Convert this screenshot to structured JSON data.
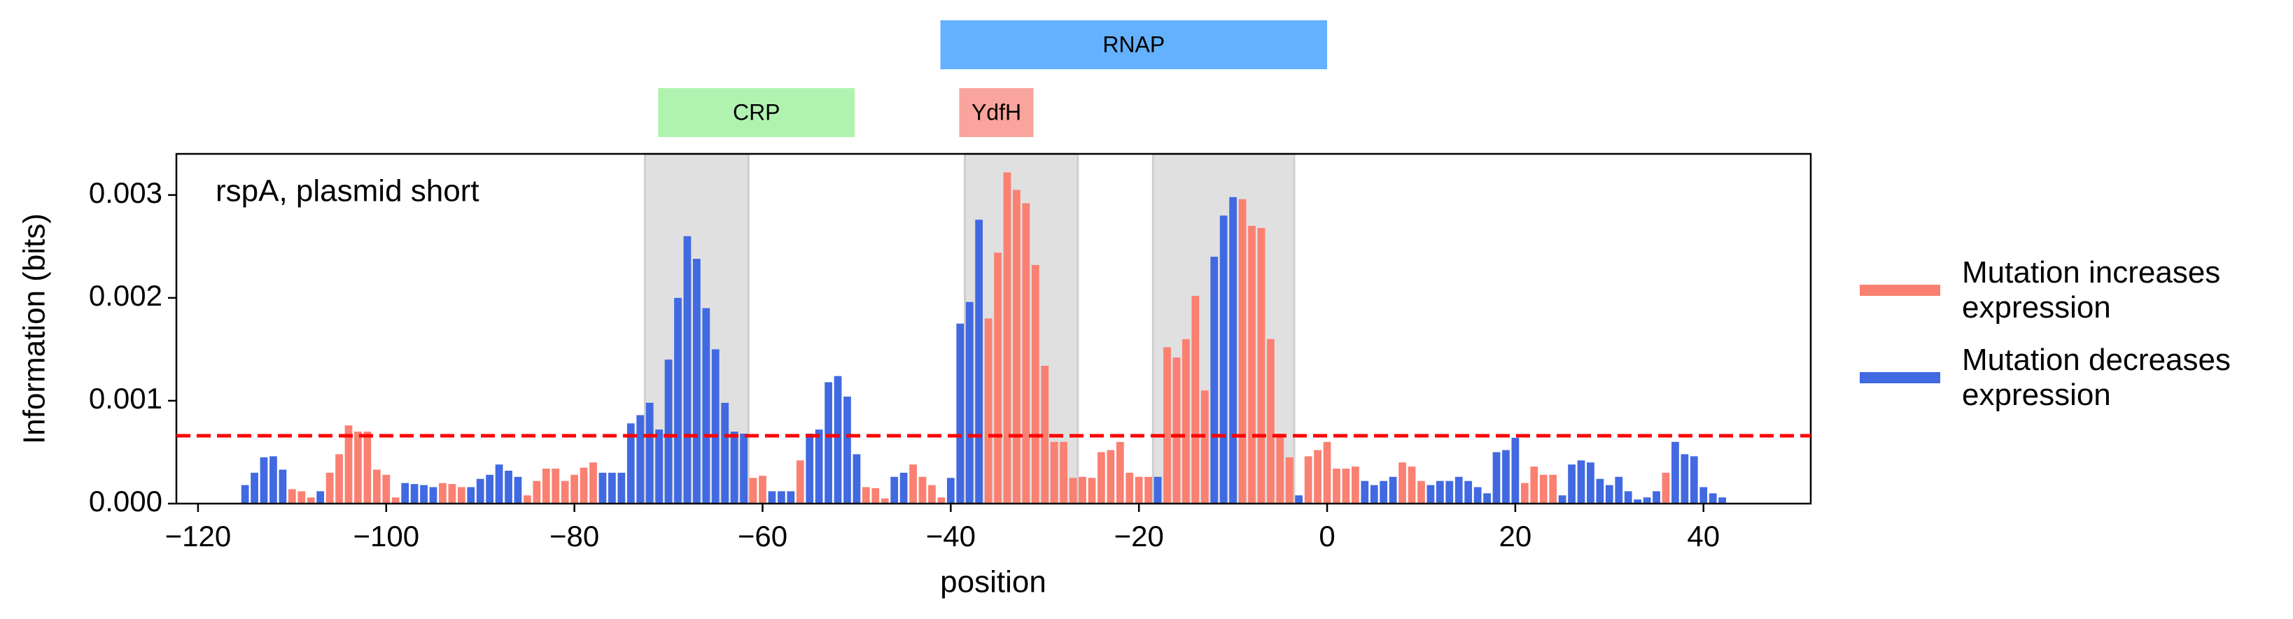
{
  "chart_data": {
    "type": "bar",
    "annotation": "rspA, plasmid short",
    "xlabel": "position",
    "ylabel": "Information (bits)",
    "xlim": [
      -122.3,
      51.4
    ],
    "ylim": [
      0,
      0.0034
    ],
    "xticks": [
      {
        "value": -120,
        "label": "−120"
      },
      {
        "value": -100,
        "label": "−100"
      },
      {
        "value": -80,
        "label": "−80"
      },
      {
        "value": -60,
        "label": "−60"
      },
      {
        "value": -40,
        "label": "−40"
      },
      {
        "value": -20,
        "label": "−20"
      },
      0,
      20,
      40
    ],
    "yticks": [
      {
        "value": 0,
        "label": "0.000"
      },
      {
        "value": 0.001,
        "label": "0.001"
      },
      {
        "value": 0.002,
        "label": "0.002"
      },
      {
        "value": 0.003,
        "label": "0.003"
      }
    ],
    "threshold": 0.00066,
    "threshold_color": "#ff0000",
    "highlight_regions": [
      [
        -72.5,
        -61.5
      ],
      [
        -38.5,
        -26.5
      ],
      [
        -18.5,
        -3.5
      ]
    ],
    "features": [
      [
        {
          "label": "RNAP",
          "x": [
            -41.1,
            0
          ],
          "color": "#64b1ff"
        }
      ],
      [
        {
          "label": "CRP",
          "x": [
            -71.1,
            -50.2
          ],
          "color": "#b0f2b0"
        },
        {
          "label": "YdfH",
          "x": [
            -39.1,
            -31.2
          ],
          "color": "#f9a49c"
        }
      ]
    ],
    "x": [
      -115,
      -114,
      -113,
      -112,
      -111,
      -110,
      -109,
      -108,
      -107,
      -106,
      -105,
      -104,
      -103,
      -102,
      -101,
      -100,
      -99,
      -98,
      -97,
      -96,
      -95,
      -94,
      -93,
      -92,
      -91,
      -90,
      -89,
      -88,
      -87,
      -86,
      -85,
      -84,
      -83,
      -82,
      -81,
      -80,
      -79,
      -78,
      -77,
      -76,
      -75,
      -74,
      -73,
      -72,
      -71,
      -70,
      -69,
      -68,
      -67,
      -66,
      -65,
      -64,
      -63,
      -62,
      -61,
      -60,
      -59,
      -58,
      -57,
      -56,
      -55,
      -54,
      -53,
      -52,
      -51,
      -50,
      -49,
      -48,
      -47,
      -46,
      -45,
      -44,
      -43,
      -42,
      -41,
      -40,
      -39,
      -38,
      -37,
      -36,
      -35,
      -34,
      -33,
      -32,
      -31,
      -30,
      -29,
      -28,
      -27,
      -26,
      -25,
      -24,
      -23,
      -22,
      -21,
      -20,
      -19,
      -18,
      -17,
      -16,
      -15,
      -14,
      -13,
      -12,
      -11,
      -10,
      -9,
      -8,
      -7,
      -6,
      -5,
      -4,
      -3,
      -2,
      -1,
      0,
      1,
      2,
      3,
      4,
      5,
      6,
      7,
      8,
      9,
      10,
      11,
      12,
      13,
      14,
      15,
      16,
      17,
      18,
      19,
      20,
      21,
      22,
      23,
      24,
      25,
      26,
      27,
      28,
      29,
      30,
      31,
      32,
      33,
      34,
      35,
      36,
      37,
      38,
      39,
      40,
      41,
      42
    ],
    "series": [
      {
        "name": "Mutation increases expression",
        "color": "#fa8072",
        "values": [
          null,
          null,
          null,
          null,
          null,
          0.00014,
          0.00012,
          6e-05,
          null,
          0.0003,
          0.00048,
          0.00076,
          0.0007,
          0.0007,
          0.00033,
          0.00028,
          6e-05,
          null,
          null,
          null,
          null,
          0.0002,
          0.00019,
          0.00016,
          null,
          null,
          null,
          null,
          null,
          null,
          8e-05,
          0.00022,
          0.00034,
          0.00034,
          0.00022,
          0.00028,
          0.00035,
          0.0004,
          null,
          null,
          null,
          null,
          null,
          null,
          null,
          null,
          null,
          null,
          null,
          null,
          null,
          null,
          null,
          null,
          0.00025,
          0.00027,
          null,
          null,
          null,
          0.00042,
          null,
          null,
          null,
          null,
          null,
          null,
          0.00016,
          0.00015,
          5e-05,
          null,
          null,
          0.00038,
          0.00026,
          0.00018,
          6e-05,
          null,
          null,
          null,
          null,
          0.0018,
          0.00244,
          0.00322,
          0.00305,
          0.00292,
          0.00232,
          0.00134,
          0.0006,
          0.0006,
          0.00025,
          0.00026,
          0.00025,
          0.0005,
          0.00052,
          0.0006,
          0.0003,
          0.00026,
          0.00026,
          null,
          0.00152,
          0.00142,
          0.0016,
          0.00202,
          0.0011,
          null,
          null,
          null,
          0.00296,
          0.0027,
          0.00268,
          0.0016,
          0.00068,
          0.00045,
          null,
          0.00046,
          0.00052,
          0.0006,
          0.00034,
          0.00034,
          0.00036,
          null,
          null,
          null,
          null,
          0.0004,
          0.00036,
          0.00022,
          null,
          null,
          null,
          null,
          null,
          null,
          null,
          null,
          null,
          null,
          0.0002,
          0.00036,
          0.00028,
          0.00028,
          null,
          null,
          null,
          null,
          null,
          null,
          null,
          null,
          null,
          null,
          null,
          0.0003,
          null,
          null,
          null,
          null,
          null,
          null
        ]
      },
      {
        "name": "Mutation decreases expression",
        "color": "#4169e1",
        "values": [
          0.00018,
          0.0003,
          0.00045,
          0.00046,
          0.00033,
          null,
          null,
          null,
          0.00012,
          null,
          null,
          null,
          null,
          null,
          null,
          null,
          null,
          0.0002,
          0.00019,
          0.00018,
          0.00016,
          null,
          null,
          null,
          0.00016,
          0.00024,
          0.00028,
          0.00038,
          0.00032,
          0.00026,
          null,
          null,
          null,
          null,
          null,
          null,
          null,
          null,
          0.0003,
          0.0003,
          0.0003,
          0.00078,
          0.00086,
          0.00098,
          0.00072,
          0.0014,
          0.002,
          0.0026,
          0.00238,
          0.0019,
          0.0015,
          0.00098,
          0.0007,
          0.00068,
          null,
          null,
          0.00012,
          0.00012,
          0.00012,
          null,
          0.00068,
          0.00072,
          0.00118,
          0.00124,
          0.00104,
          0.00048,
          null,
          null,
          null,
          0.00026,
          0.0003,
          null,
          null,
          null,
          null,
          0.00025,
          0.00175,
          0.00196,
          0.00276,
          null,
          null,
          null,
          null,
          null,
          null,
          null,
          null,
          null,
          null,
          null,
          null,
          null,
          null,
          null,
          null,
          null,
          null,
          0.00026,
          null,
          null,
          null,
          null,
          null,
          0.0024,
          0.0028,
          0.00298,
          null,
          null,
          null,
          null,
          null,
          null,
          8e-05,
          null,
          null,
          null,
          null,
          null,
          null,
          0.00022,
          0.00018,
          0.00022,
          0.00026,
          null,
          null,
          null,
          0.00018,
          0.00022,
          0.00022,
          0.00026,
          0.00022,
          0.00016,
          0.0001,
          0.0005,
          0.00052,
          0.00064,
          null,
          null,
          null,
          null,
          8e-05,
          0.00038,
          0.00042,
          0.0004,
          0.00024,
          0.00018,
          0.00026,
          0.00012,
          4e-05,
          6e-05,
          0.00012,
          null,
          0.0006,
          0.00048,
          0.00046,
          0.00016,
          0.0001,
          6e-05
        ]
      }
    ]
  }
}
